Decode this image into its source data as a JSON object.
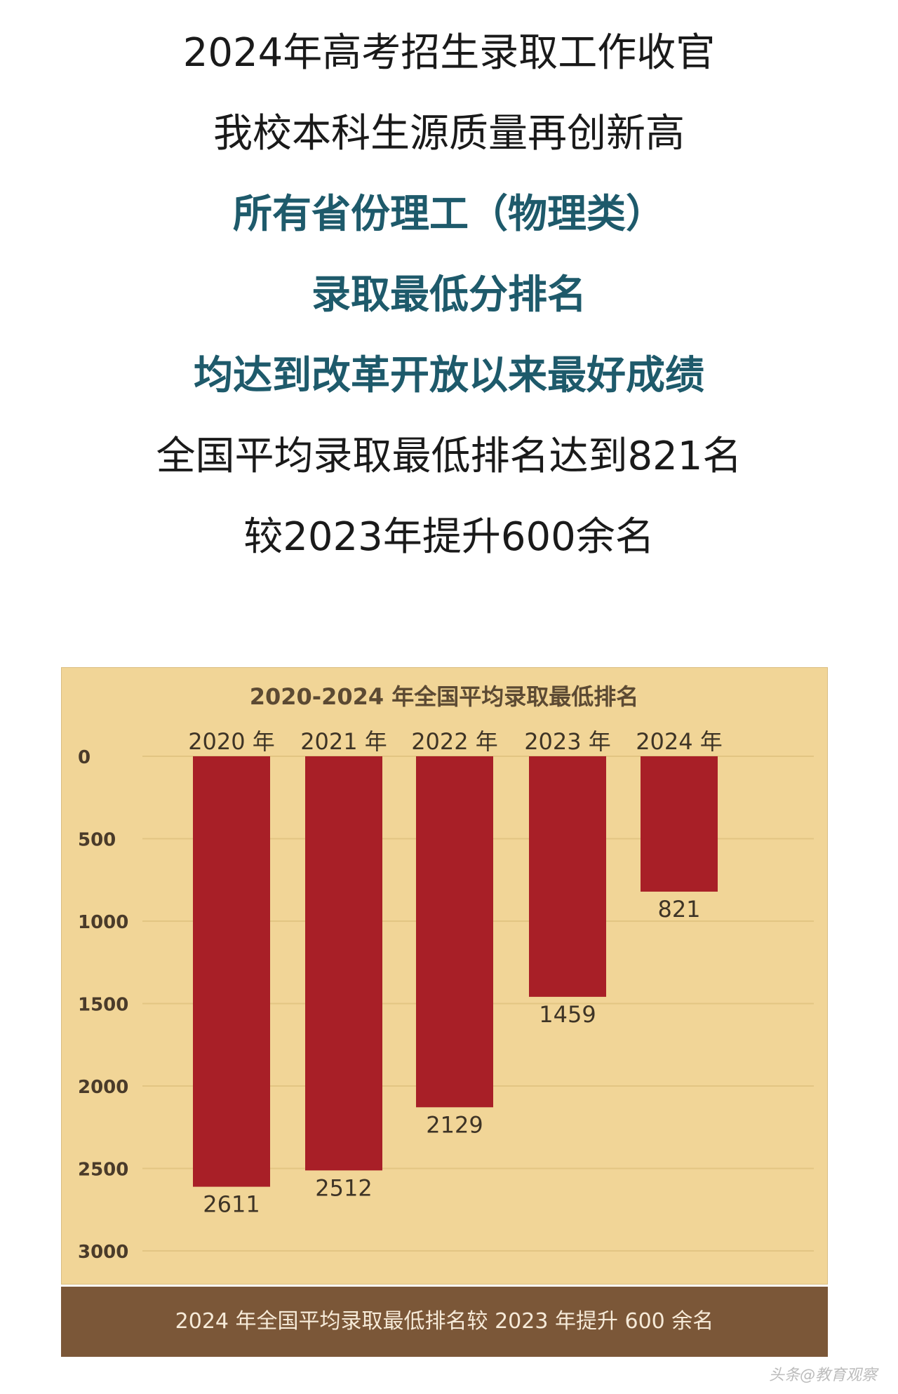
{
  "headline": {
    "lines": [
      {
        "text": "2024年高考招生录取工作收官",
        "emphasis": false
      },
      {
        "text": "我校本科生源质量再创新高",
        "emphasis": false
      },
      {
        "text": "所有省份理工（物理类）",
        "emphasis": true
      },
      {
        "text": "录取最低分排名",
        "emphasis": true
      },
      {
        "text": "均达到改革开放以来最好成绩",
        "emphasis": true
      },
      {
        "text": "全国平均录取最低排名达到821名",
        "emphasis": false
      },
      {
        "text": "较2023年提升600余名",
        "emphasis": false
      }
    ]
  },
  "chart_data": {
    "type": "bar",
    "title": "2020-2024 年全国平均录取最低排名",
    "categories": [
      "2020 年",
      "2021 年",
      "2022 年",
      "2023 年",
      "2024 年"
    ],
    "values": [
      2611,
      2512,
      2129,
      1459,
      821
    ],
    "data_labels": [
      "2611",
      "2512",
      "2129",
      "1459",
      "821"
    ],
    "y_ticks": [
      "0",
      "500",
      "1000",
      "1500",
      "2000",
      "2500",
      "3000"
    ],
    "ylim": [
      0,
      3000
    ],
    "y_inverted": true,
    "x_axis_position": "top",
    "grid": true,
    "bar_color": "#a81f27",
    "panel_color": "#f1d597",
    "grid_color": "#e2c583"
  },
  "footer": {
    "text": "2024 年全国平均录取最低排名较 2023 年提升 600 余名",
    "color": "#7b5738"
  },
  "watermark": {
    "text": "头条@教育观察"
  }
}
